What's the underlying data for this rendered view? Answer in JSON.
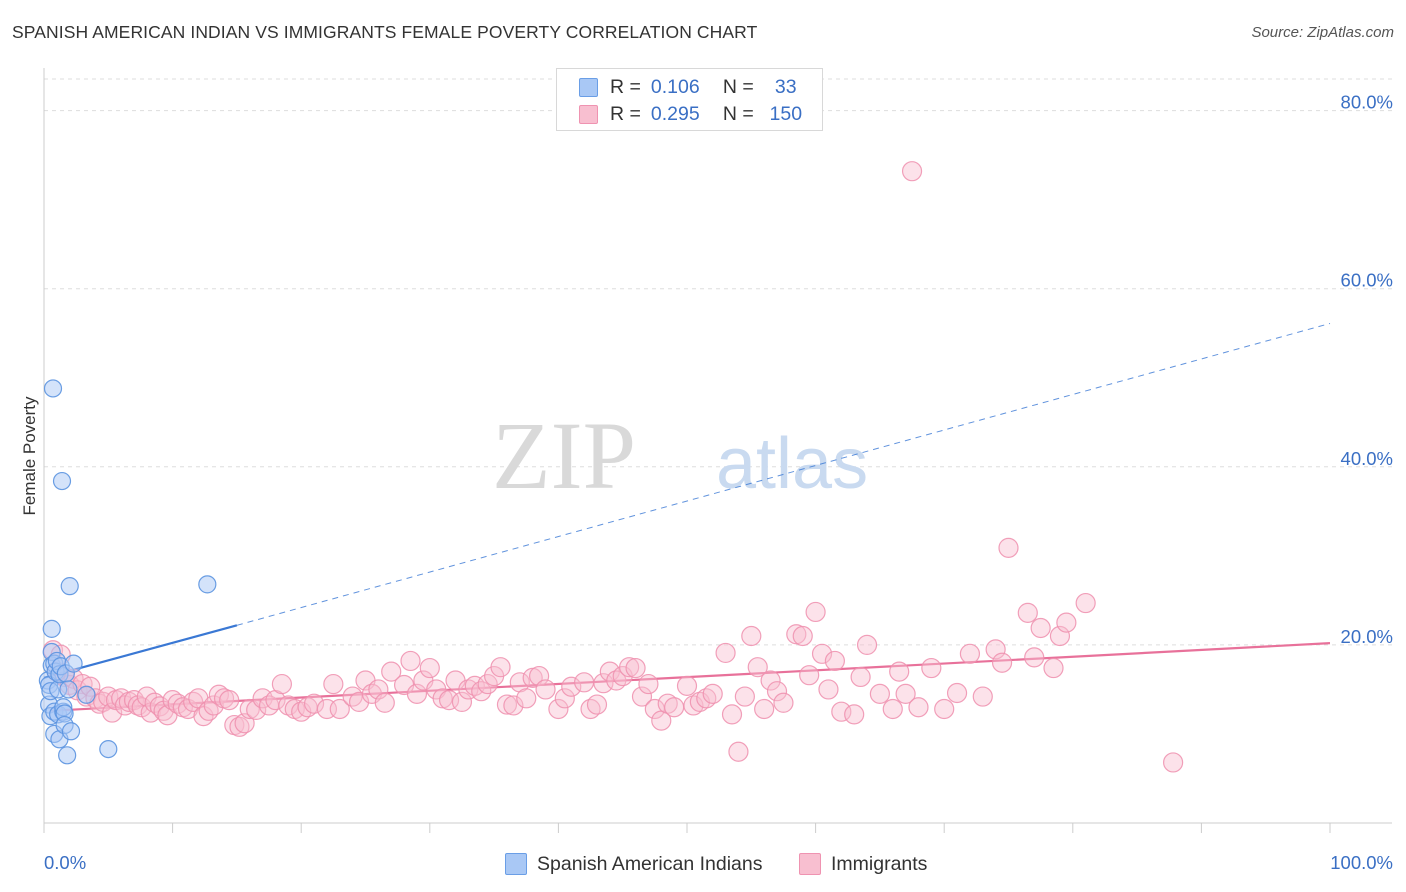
{
  "title": "SPANISH AMERICAN INDIAN VS IMMIGRANTS FEMALE POVERTY CORRELATION CHART",
  "source": "Source: ZipAtlas.com",
  "watermark": {
    "zip": "ZIP",
    "atlas": "atlas"
  },
  "legend": {
    "rows": [
      {
        "r_label": "R =",
        "r_value": "0.106",
        "n_label": "N =",
        "n_value": "33",
        "color": "#a9c8f5",
        "border": "#6a9ee6"
      },
      {
        "r_label": "R =",
        "r_value": "0.295",
        "n_label": "N =",
        "n_value": "150",
        "color": "#f8bfd0",
        "border": "#ef93b1"
      }
    ]
  },
  "bottom_legend": [
    {
      "label": "Spanish American Indians",
      "color": "#a9c8f5",
      "border": "#6a9ee6"
    },
    {
      "label": "Immigrants",
      "color": "#f8bfd0",
      "border": "#ef93b1"
    }
  ],
  "chart_data": {
    "type": "scatter",
    "title": "SPANISH AMERICAN INDIAN VS IMMIGRANTS FEMALE POVERTY CORRELATION CHART",
    "xlabel": "",
    "ylabel": "Female Poverty",
    "xlim": [
      0,
      100
    ],
    "ylim": [
      0,
      84
    ],
    "x_tick_labels": [
      "0.0%",
      "100.0%"
    ],
    "y_ticks": [
      20,
      40,
      60,
      80
    ],
    "y_tick_labels": [
      "20.0%",
      "40.0%",
      "60.0%",
      "80.0%"
    ],
    "grid": true,
    "legend_position": "top-center",
    "colors": {
      "blue_point": "#a9c8f5",
      "blue_edge": "#5b93e0",
      "blue_line": "#3a78d4",
      "pink_point": "#f8bfd0",
      "pink_edge": "#ee8fae",
      "pink_line": "#e8719a",
      "tick_label": "#3a6fc4"
    },
    "series": [
      {
        "name": "Spanish American Indians",
        "trend": {
          "x": [
            0,
            15
          ],
          "y": [
            16.3,
            22.2
          ],
          "dashed_extension_to": [
            100,
            56.1
          ]
        },
        "points": [
          [
            0.3,
            16.0
          ],
          [
            0.4,
            15.5
          ],
          [
            0.4,
            13.3
          ],
          [
            0.5,
            12.0
          ],
          [
            0.5,
            14.8
          ],
          [
            0.6,
            17.7
          ],
          [
            0.6,
            21.8
          ],
          [
            0.6,
            19.2
          ],
          [
            0.7,
            48.8
          ],
          [
            0.8,
            17.9
          ],
          [
            0.8,
            12.5
          ],
          [
            0.8,
            10.0
          ],
          [
            0.9,
            17.0
          ],
          [
            1.0,
            18.2
          ],
          [
            1.1,
            15.0
          ],
          [
            1.1,
            12.2
          ],
          [
            1.2,
            16.7
          ],
          [
            1.2,
            9.4
          ],
          [
            1.3,
            17.6
          ],
          [
            1.4,
            38.4
          ],
          [
            1.5,
            12.5
          ],
          [
            1.5,
            13.0
          ],
          [
            1.6,
            12.3
          ],
          [
            1.6,
            11.0
          ],
          [
            1.7,
            16.8
          ],
          [
            1.8,
            7.6
          ],
          [
            1.9,
            15.0
          ],
          [
            2.0,
            26.6
          ],
          [
            2.1,
            10.3
          ],
          [
            2.3,
            17.9
          ],
          [
            3.3,
            14.4
          ],
          [
            5.0,
            8.3
          ],
          [
            12.7,
            26.8
          ]
        ]
      },
      {
        "name": "Immigrants",
        "trend": {
          "x": [
            0.5,
            100
          ],
          "y": [
            12.6,
            20.2
          ]
        },
        "points": [
          [
            0.7,
            19.4
          ],
          [
            1.0,
            17.0
          ],
          [
            1.3,
            18.9
          ],
          [
            1.6,
            16.4
          ],
          [
            2.0,
            15.5
          ],
          [
            2.3,
            16.2
          ],
          [
            2.6,
            14.9
          ],
          [
            3.0,
            15.6
          ],
          [
            3.3,
            14.2
          ],
          [
            3.6,
            15.3
          ],
          [
            4.0,
            14.0
          ],
          [
            4.3,
            13.4
          ],
          [
            4.6,
            13.6
          ],
          [
            5.0,
            14.2
          ],
          [
            5.3,
            12.4
          ],
          [
            5.6,
            13.8
          ],
          [
            6.0,
            14.0
          ],
          [
            6.3,
            13.2
          ],
          [
            6.6,
            13.6
          ],
          [
            7.0,
            13.8
          ],
          [
            7.3,
            13.2
          ],
          [
            7.6,
            13.0
          ],
          [
            8.0,
            14.2
          ],
          [
            8.3,
            12.4
          ],
          [
            8.6,
            13.5
          ],
          [
            9.0,
            13.1
          ],
          [
            9.3,
            12.6
          ],
          [
            9.6,
            12.1
          ],
          [
            10.0,
            13.8
          ],
          [
            10.4,
            13.4
          ],
          [
            10.8,
            13.0
          ],
          [
            11.2,
            12.8
          ],
          [
            11.6,
            13.6
          ],
          [
            12.0,
            14.0
          ],
          [
            12.4,
            12.0
          ],
          [
            12.8,
            12.6
          ],
          [
            13.2,
            13.2
          ],
          [
            13.6,
            14.4
          ],
          [
            14.0,
            14.0
          ],
          [
            14.4,
            13.8
          ],
          [
            14.8,
            11.0
          ],
          [
            15.2,
            10.8
          ],
          [
            15.6,
            11.2
          ],
          [
            16.0,
            12.8
          ],
          [
            16.5,
            12.7
          ],
          [
            17.0,
            14.0
          ],
          [
            17.5,
            13.2
          ],
          [
            18.0,
            13.8
          ],
          [
            18.5,
            15.6
          ],
          [
            19.0,
            13.2
          ],
          [
            19.5,
            12.8
          ],
          [
            20.0,
            12.5
          ],
          [
            20.5,
            13.0
          ],
          [
            21.0,
            13.4
          ],
          [
            22.0,
            12.8
          ],
          [
            22.5,
            15.6
          ],
          [
            23.0,
            12.8
          ],
          [
            24.0,
            14.2
          ],
          [
            24.5,
            13.6
          ],
          [
            25.0,
            16.0
          ],
          [
            25.5,
            14.5
          ],
          [
            26.0,
            15.0
          ],
          [
            26.5,
            13.5
          ],
          [
            27.0,
            17.0
          ],
          [
            28.0,
            15.5
          ],
          [
            28.5,
            18.2
          ],
          [
            29.0,
            14.5
          ],
          [
            29.5,
            16.0
          ],
          [
            30.0,
            17.4
          ],
          [
            30.5,
            15.0
          ],
          [
            31.0,
            14.0
          ],
          [
            31.5,
            13.8
          ],
          [
            32.0,
            16.0
          ],
          [
            32.5,
            13.6
          ],
          [
            33.0,
            15.0
          ],
          [
            33.5,
            15.4
          ],
          [
            34.0,
            14.8
          ],
          [
            34.5,
            15.6
          ],
          [
            35.0,
            16.5
          ],
          [
            35.5,
            17.5
          ],
          [
            36.0,
            13.3
          ],
          [
            36.5,
            13.2
          ],
          [
            37.0,
            15.8
          ],
          [
            37.5,
            14.0
          ],
          [
            38.0,
            16.3
          ],
          [
            38.5,
            16.5
          ],
          [
            39.0,
            15.0
          ],
          [
            40.0,
            12.8
          ],
          [
            40.5,
            14.0
          ],
          [
            41.0,
            15.3
          ],
          [
            42.0,
            15.8
          ],
          [
            42.5,
            12.8
          ],
          [
            43.0,
            13.3
          ],
          [
            43.5,
            15.7
          ],
          [
            44.0,
            17.0
          ],
          [
            44.5,
            16.0
          ],
          [
            45.0,
            16.5
          ],
          [
            45.5,
            17.5
          ],
          [
            46.0,
            17.4
          ],
          [
            46.5,
            14.2
          ],
          [
            47.0,
            15.6
          ],
          [
            47.5,
            12.8
          ],
          [
            48.0,
            11.5
          ],
          [
            48.5,
            13.4
          ],
          [
            49.0,
            13.0
          ],
          [
            50.0,
            15.4
          ],
          [
            50.5,
            13.2
          ],
          [
            51.0,
            13.6
          ],
          [
            51.5,
            14.0
          ],
          [
            52.0,
            14.5
          ],
          [
            53.0,
            19.1
          ],
          [
            53.5,
            12.2
          ],
          [
            54.0,
            8.0
          ],
          [
            54.5,
            14.2
          ],
          [
            55.0,
            21.0
          ],
          [
            55.5,
            17.5
          ],
          [
            56.0,
            12.8
          ],
          [
            56.5,
            16.0
          ],
          [
            57.0,
            14.8
          ],
          [
            57.5,
            13.5
          ],
          [
            58.5,
            21.2
          ],
          [
            59.0,
            21.0
          ],
          [
            59.5,
            16.6
          ],
          [
            60.0,
            23.7
          ],
          [
            60.5,
            19.0
          ],
          [
            61.0,
            15.0
          ],
          [
            61.5,
            18.2
          ],
          [
            62.0,
            12.5
          ],
          [
            63.0,
            12.2
          ],
          [
            63.5,
            16.4
          ],
          [
            64.0,
            20.0
          ],
          [
            65.0,
            14.5
          ],
          [
            66.0,
            12.8
          ],
          [
            66.5,
            17.0
          ],
          [
            67.0,
            14.5
          ],
          [
            68.0,
            13.0
          ],
          [
            69.0,
            17.4
          ],
          [
            70.0,
            12.8
          ],
          [
            71.0,
            14.6
          ],
          [
            72.0,
            19.0
          ],
          [
            73.0,
            14.2
          ],
          [
            74.0,
            19.5
          ],
          [
            74.5,
            18.0
          ],
          [
            75.0,
            30.9
          ],
          [
            76.5,
            23.6
          ],
          [
            77.0,
            18.6
          ],
          [
            77.5,
            21.9
          ],
          [
            78.5,
            17.4
          ],
          [
            79.0,
            21.0
          ],
          [
            79.5,
            22.5
          ],
          [
            81.0,
            24.7
          ],
          [
            67.5,
            73.2
          ],
          [
            87.8,
            6.8
          ]
        ]
      }
    ]
  }
}
